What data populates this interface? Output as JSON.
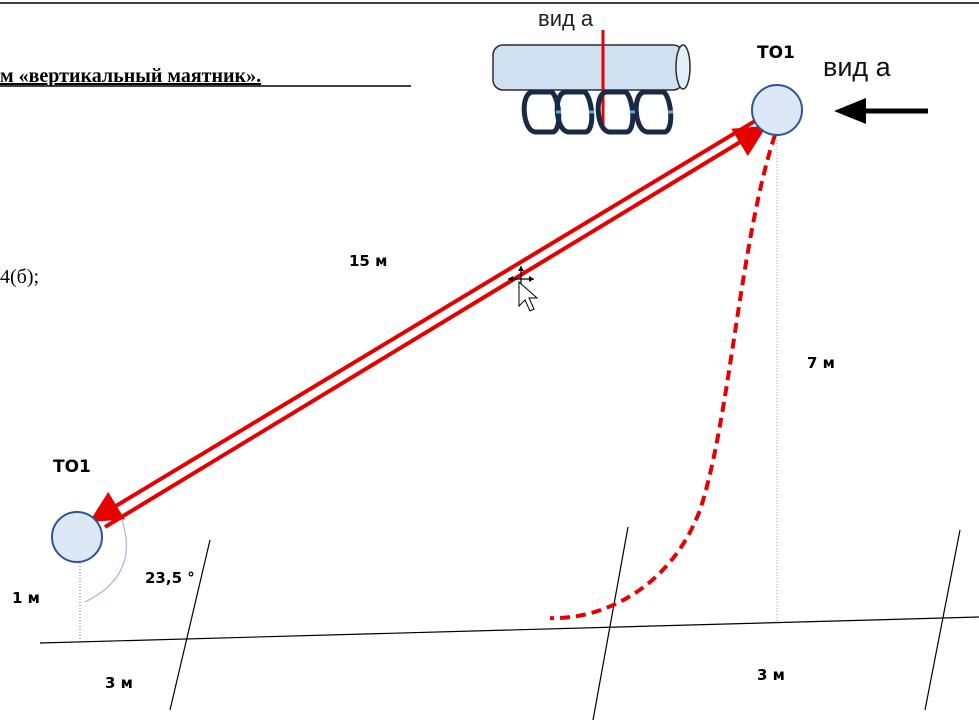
{
  "document": {
    "heading_fragment": "м «вертикальный маятник».",
    "text_fragment": "4(б);"
  },
  "diagram": {
    "anchor_top_label": "ТО1",
    "anchor_bottom_label": "ТО1",
    "view_label_small": "вид а",
    "view_label_arrow": "вид а",
    "rope_length_label": "15 м",
    "height_label": "7 м",
    "angle_label": "23,5 °",
    "bottom_height_label": "1 м",
    "span_left_label": "3 м",
    "span_right_label": "3 м"
  },
  "colors": {
    "rope": "#e60000",
    "anchor_fill": "#dce8f5",
    "anchor_stroke": "#2f5597",
    "tube_fill": "#cfe0f0",
    "carabiner": "#1a2a44",
    "carabiner_gate": "#4fb0e0"
  },
  "cursor": "move-cursor-icon"
}
